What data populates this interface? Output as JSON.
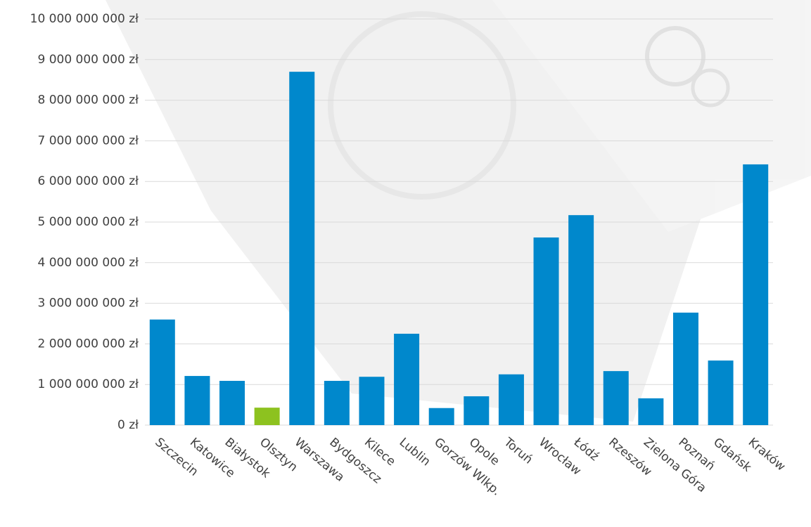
{
  "chart_data": {
    "type": "bar",
    "categories": [
      "Szczecin",
      "Katowice",
      "Białystok",
      "Olsztyn",
      "Warszawa",
      "Bydgoszcz",
      "Kilece",
      "Lublin",
      "Gorzów Wlkp.",
      "Opole",
      "Toruń",
      "Wrocław",
      "Łódź",
      "Rzeszów",
      "Zielona Góra",
      "Poznań",
      "Gdańsk",
      "Kraków"
    ],
    "values": [
      2600000000,
      1210000000,
      1090000000,
      430000000,
      8700000000,
      1090000000,
      1190000000,
      2250000000,
      420000000,
      710000000,
      1250000000,
      4620000000,
      5170000000,
      1330000000,
      660000000,
      2770000000,
      1590000000,
      6420000000
    ],
    "colors": [
      "#0088cc",
      "#0088cc",
      "#0088cc",
      "#8dc21f",
      "#0088cc",
      "#0088cc",
      "#0088cc",
      "#0088cc",
      "#0088cc",
      "#0088cc",
      "#0088cc",
      "#0088cc",
      "#0088cc",
      "#0088cc",
      "#0088cc",
      "#0088cc",
      "#0088cc",
      "#0088cc"
    ],
    "ylim": [
      0,
      10000000000
    ],
    "yticks": [
      {
        "value": 0,
        "label": "0 zł"
      },
      {
        "value": 1000000000,
        "label": "1 000 000 000 zł"
      },
      {
        "value": 2000000000,
        "label": "2 000 000 000 zł"
      },
      {
        "value": 3000000000,
        "label": "3 000 000 000 zł"
      },
      {
        "value": 4000000000,
        "label": "4 000 000 000 zł"
      },
      {
        "value": 5000000000,
        "label": "5 000 000 000 zł"
      },
      {
        "value": 6000000000,
        "label": "6 000 000 000 zł"
      },
      {
        "value": 7000000000,
        "label": "7 000 000 000 zł"
      },
      {
        "value": 8000000000,
        "label": "8 000 000 000 zł"
      },
      {
        "value": 9000000000,
        "label": "9 000 000 000 zł"
      },
      {
        "value": 10000000000,
        "label": "10 000 000 000 zł"
      }
    ],
    "grid": true
  }
}
